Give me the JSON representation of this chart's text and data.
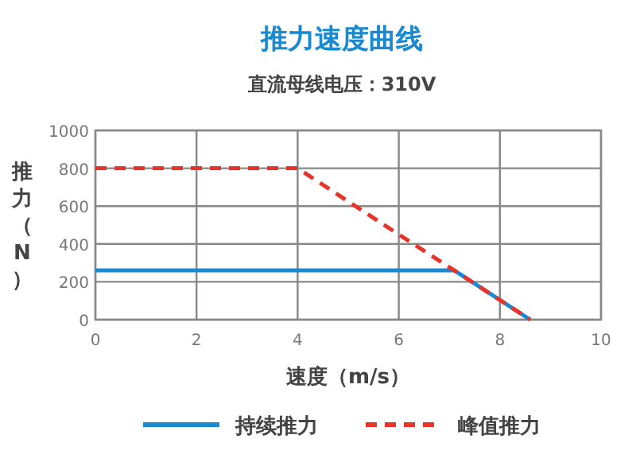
{
  "chart_data": {
    "type": "line",
    "title": "推力速度曲线",
    "subtitle": "直流母线电压：310V",
    "xlabel": "速度（m/s）",
    "ylabel": "推力（N）",
    "xlim": [
      0,
      10
    ],
    "xticks": [
      0,
      2,
      4,
      6,
      8,
      10
    ],
    "ylim": [
      0,
      1000
    ],
    "yticks": [
      0,
      200,
      400,
      600,
      800,
      1000
    ],
    "grid": true,
    "legend": "bottom",
    "series": [
      {
        "name": "持续推力",
        "color": "#1a8ad0",
        "line_style": "solid",
        "x": [
          0,
          7.1,
          8.6
        ],
        "values": [
          260,
          260,
          0
        ]
      },
      {
        "name": "峰值推力",
        "color": "#e8332a",
        "line_style": "dashed",
        "x": [
          0,
          4,
          6,
          7.1,
          8.6
        ],
        "values": [
          800,
          800,
          450,
          260,
          0
        ]
      }
    ]
  }
}
